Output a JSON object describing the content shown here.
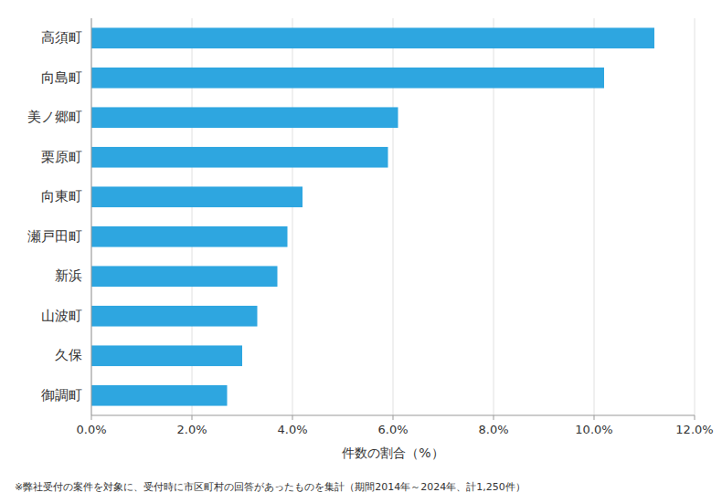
{
  "chart_data": {
    "type": "bar",
    "orientation": "horizontal",
    "categories": [
      "御調町",
      "久保",
      "山波町",
      "新浜",
      "瀬戸田町",
      "向東町",
      "栗原町",
      "美ノ郷町",
      "向島町",
      "高須町"
    ],
    "values": [
      2.7,
      3.0,
      3.3,
      3.7,
      3.9,
      4.2,
      5.9,
      6.1,
      10.2,
      11.2
    ],
    "color": "#2EA6E0",
    "xlabel": "件数の割合（%）",
    "xlim": [
      0,
      12.0
    ],
    "xticks": [
      {
        "value": 0.0,
        "label": "0.0%"
      },
      {
        "value": 2.0,
        "label": "2.0%"
      },
      {
        "value": 4.0,
        "label": "4.0%"
      },
      {
        "value": 6.0,
        "label": "6.0%"
      },
      {
        "value": 8.0,
        "label": "8.0%"
      },
      {
        "value": 10.0,
        "label": "10.0%"
      },
      {
        "value": 12.0,
        "label": "12.0%"
      }
    ],
    "grid": true,
    "footnote": "※弊社受付の案件を対象に、受付時に市区町村の回答があったものを集計（期間2014年～2024年、計1,250件）"
  }
}
